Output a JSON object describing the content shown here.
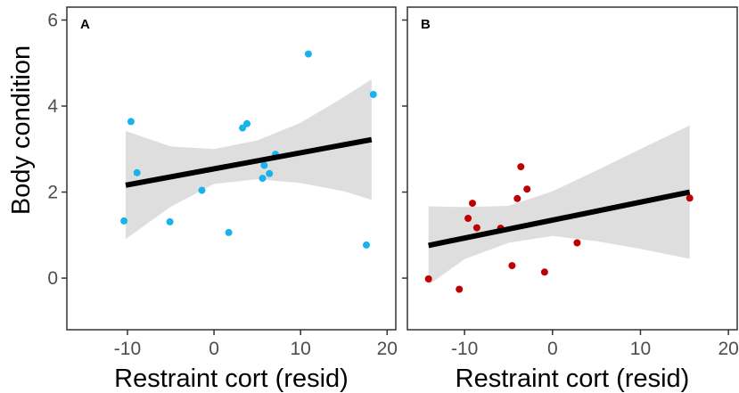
{
  "colors": {
    "panel_a_points": "#17b3ea",
    "panel_b_points": "#c00000",
    "fit_line": "#000000",
    "ci_band": "#dedede",
    "frame": "#333333",
    "tick_text": "#4d4d4d"
  },
  "ylabel": "Body condition",
  "chart_data": [
    {
      "type": "scatter",
      "panel": "A",
      "xlabel": "Restraint cort (resid)",
      "ylabel": "Body condition",
      "xlim": [
        -17,
        21
      ],
      "ylim": [
        -1.2,
        6.3
      ],
      "xticks": [
        -10,
        0,
        10,
        20
      ],
      "yticks": [
        0,
        2,
        4,
        6
      ],
      "grid": false,
      "points": [
        {
          "x": -10.4,
          "y": 1.33
        },
        {
          "x": -9.6,
          "y": 3.64
        },
        {
          "x": -8.9,
          "y": 2.45
        },
        {
          "x": -5.1,
          "y": 1.31
        },
        {
          "x": -1.4,
          "y": 2.04
        },
        {
          "x": 1.7,
          "y": 1.06
        },
        {
          "x": 3.3,
          "y": 3.49
        },
        {
          "x": 3.8,
          "y": 3.59
        },
        {
          "x": 5.6,
          "y": 2.32
        },
        {
          "x": 5.8,
          "y": 2.62
        },
        {
          "x": 6.4,
          "y": 2.43
        },
        {
          "x": 7.1,
          "y": 2.88
        },
        {
          "x": 10.9,
          "y": 5.21
        },
        {
          "x": 17.6,
          "y": 0.77
        },
        {
          "x": 18.4,
          "y": 4.27
        }
      ],
      "fit": {
        "x": [
          -10.2,
          18.2
        ],
        "y": [
          2.16,
          3.22
        ]
      },
      "ci": {
        "x": [
          -10.2,
          -5,
          0,
          5,
          10,
          15,
          18.2
        ],
        "lower": [
          0.91,
          1.66,
          2.19,
          2.3,
          2.21,
          2.02,
          1.82
        ],
        "upper": [
          3.42,
          3.06,
          3.0,
          3.2,
          3.61,
          4.21,
          4.62
        ]
      }
    },
    {
      "type": "scatter",
      "panel": "B",
      "xlabel": "Restraint cort (resid)",
      "ylabel": "",
      "xlim": [
        -16.5,
        21
      ],
      "ylim": [
        -1.2,
        6.3
      ],
      "xticks": [
        -10,
        0,
        10,
        20
      ],
      "yticks": [
        0,
        2,
        4,
        6
      ],
      "grid": false,
      "points": [
        {
          "x": -14.1,
          "y": -0.02
        },
        {
          "x": -10.6,
          "y": -0.26
        },
        {
          "x": -9.6,
          "y": 1.39
        },
        {
          "x": -9.1,
          "y": 1.74
        },
        {
          "x": -8.6,
          "y": 1.17
        },
        {
          "x": -5.9,
          "y": 1.16
        },
        {
          "x": -4.6,
          "y": 0.29
        },
        {
          "x": -4.0,
          "y": 1.85
        },
        {
          "x": -3.6,
          "y": 2.59
        },
        {
          "x": -2.9,
          "y": 2.07
        },
        {
          "x": -0.9,
          "y": 0.14
        },
        {
          "x": 2.8,
          "y": 0.82
        },
        {
          "x": 15.6,
          "y": 1.86
        }
      ],
      "fit": {
        "x": [
          -14.1,
          15.6
        ],
        "y": [
          0.76,
          2.0
        ]
      },
      "ci": {
        "x": [
          -14.1,
          -10,
          -5,
          0,
          5,
          10,
          15.6
        ],
        "lower": [
          -0.16,
          0.44,
          0.82,
          0.98,
          0.86,
          0.68,
          0.45
        ],
        "upper": [
          1.67,
          1.65,
          1.68,
          2.02,
          2.5,
          3.0,
          3.55
        ]
      }
    }
  ]
}
